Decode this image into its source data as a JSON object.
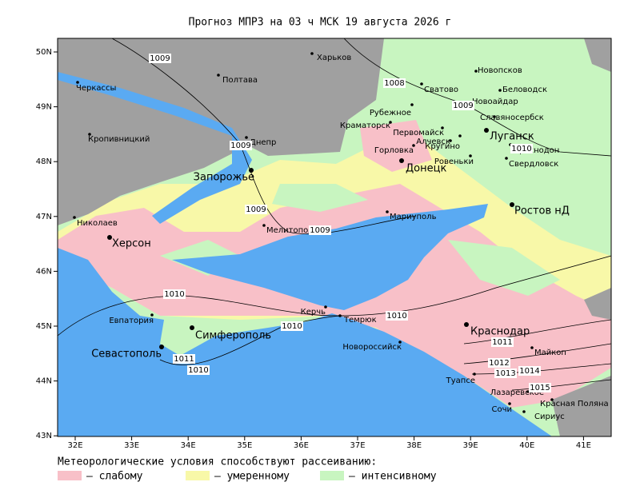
{
  "title": "Прогноз МПРЗ на 03 ч МСК 19 августа 2026 г",
  "map": {
    "lat_ticks": [
      {
        "value": 50,
        "label": "50N"
      },
      {
        "value": 49,
        "label": "49N"
      },
      {
        "value": 48,
        "label": "48N"
      },
      {
        "value": 47,
        "label": "47N"
      },
      {
        "value": 46,
        "label": "46N"
      },
      {
        "value": 45,
        "label": "45N"
      },
      {
        "value": 44,
        "label": "44N"
      },
      {
        "value": 43,
        "label": "43N"
      }
    ],
    "lon_ticks": [
      {
        "value": 32,
        "label": "32E"
      },
      {
        "value": 33,
        "label": "33E"
      },
      {
        "value": 34,
        "label": "34E"
      },
      {
        "value": 35,
        "label": "35E"
      },
      {
        "value": 36,
        "label": "36E"
      },
      {
        "value": 37,
        "label": "37E"
      },
      {
        "value": 38,
        "label": "38E"
      },
      {
        "value": 39,
        "label": "39E"
      },
      {
        "value": 40,
        "label": "40E"
      },
      {
        "value": 41,
        "label": "41E"
      }
    ],
    "cities": [
      "Харьков",
      "Полтава",
      "Черкассы",
      "Кропивницкий",
      "Днепр",
      "Запорожье",
      "Николаев",
      "Херсон",
      "Мелитополь",
      "Мариуполь",
      "Евпатория",
      "Симферополь",
      "Севастополь",
      "Керчь",
      "Темрюк",
      "Новороссийск",
      "Туапсе",
      "Лазаревское",
      "Сочи",
      "Красная Поляна",
      "Сириус",
      "Краснодар",
      "Майкоп",
      "Ростов нД",
      "Донецк",
      "Горловка",
      "Алчевск",
      "Кругино",
      "Ровеньки",
      "Свердловск",
      "Краснодон",
      "Луганск",
      "Славяносербск",
      "Новоайдар",
      "Беловодск",
      "Новопсков",
      "Сватово",
      "Рубежное",
      "Краматорск",
      "Первомайск"
    ],
    "isobar_labels": [
      "1009",
      "1008",
      "1009",
      "1009",
      "1010",
      "1009",
      "1009",
      "1010",
      "1010",
      "1010",
      "1011",
      "1010",
      "1011",
      "1012",
      "1013",
      "1014",
      "1015"
    ]
  },
  "legend": {
    "caption": "Метеорологические условия способствуют рассеиванию:",
    "items": [
      "— слабому",
      "— умеренному",
      "— интенсивному"
    ]
  }
}
